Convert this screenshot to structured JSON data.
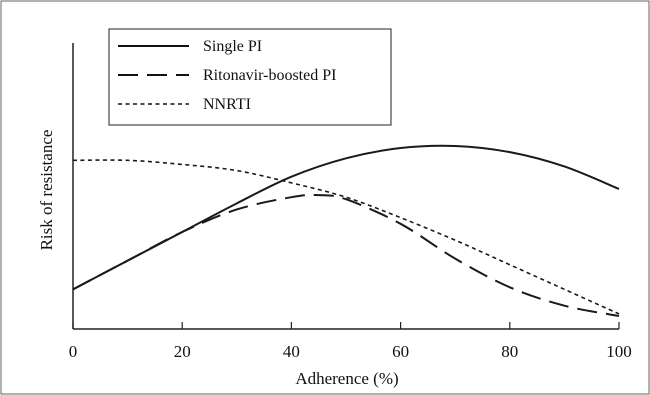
{
  "chart_data": {
    "type": "line",
    "title": "",
    "xlabel": "Adherence (%)",
    "ylabel": "Risk of resistance",
    "xlim": [
      0,
      100
    ],
    "ylim": [
      0,
      1
    ],
    "y_tick_labels_shown": false,
    "x_ticks": [
      0,
      20,
      40,
      60,
      80,
      100
    ],
    "x_tick_labels": [
      "0",
      "20",
      "40",
      "60",
      "80",
      "100"
    ],
    "grid": false,
    "legend_position": "top-left",
    "series": [
      {
        "name": "Single PI",
        "line_style": "solid",
        "color": "#1a1a1a",
        "points": [
          [
            0,
            0.14
          ],
          [
            10,
            0.28
          ],
          [
            20,
            0.42
          ],
          [
            30,
            0.56
          ],
          [
            40,
            0.69
          ],
          [
            50,
            0.78
          ],
          [
            60,
            0.83
          ],
          [
            70,
            0.84
          ],
          [
            80,
            0.81
          ],
          [
            90,
            0.74
          ],
          [
            100,
            0.63
          ]
        ]
      },
      {
        "name": "Ritonavir-boosted PI",
        "line_style": "long-dash",
        "color": "#1a1a1a",
        "points": [
          [
            0,
            0.14
          ],
          [
            10,
            0.28
          ],
          [
            20,
            0.42
          ],
          [
            30,
            0.53
          ],
          [
            40,
            0.59
          ],
          [
            45,
            0.6
          ],
          [
            50,
            0.58
          ],
          [
            60,
            0.46
          ],
          [
            70,
            0.29
          ],
          [
            80,
            0.15
          ],
          [
            90,
            0.06
          ],
          [
            100,
            0.01
          ]
        ]
      },
      {
        "name": "NNRTI",
        "line_style": "short-dash",
        "color": "#1a1a1a",
        "points": [
          [
            0,
            0.77
          ],
          [
            10,
            0.77
          ],
          [
            20,
            0.75
          ],
          [
            30,
            0.72
          ],
          [
            40,
            0.66
          ],
          [
            50,
            0.59
          ],
          [
            60,
            0.49
          ],
          [
            70,
            0.38
          ],
          [
            80,
            0.26
          ],
          [
            90,
            0.14
          ],
          [
            100,
            0.02
          ]
        ]
      }
    ]
  }
}
